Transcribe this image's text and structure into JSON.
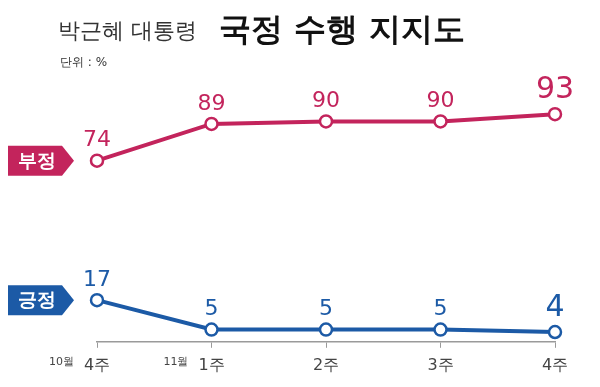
{
  "chart_data": {
    "type": "line",
    "title": "국정 수행 지지도",
    "subtitle": "박근혜 대통령",
    "unit_label": "단위 : %",
    "categories": [
      "4주",
      "1주",
      "2주",
      "3주",
      "4주"
    ],
    "month_labels": [
      "10월",
      "11월",
      null,
      null,
      null
    ],
    "series": [
      {
        "name": "부정",
        "color": "#c3245c",
        "values": [
          74,
          89,
          90,
          90,
          93
        ]
      },
      {
        "name": "긍정",
        "color": "#1c5aa6",
        "values": [
          17,
          5,
          5,
          5,
          4
        ]
      }
    ],
    "ylim": [
      0,
      100
    ],
    "grid": false,
    "tick_labels": "x",
    "data_labels": true,
    "marker": "circle"
  }
}
